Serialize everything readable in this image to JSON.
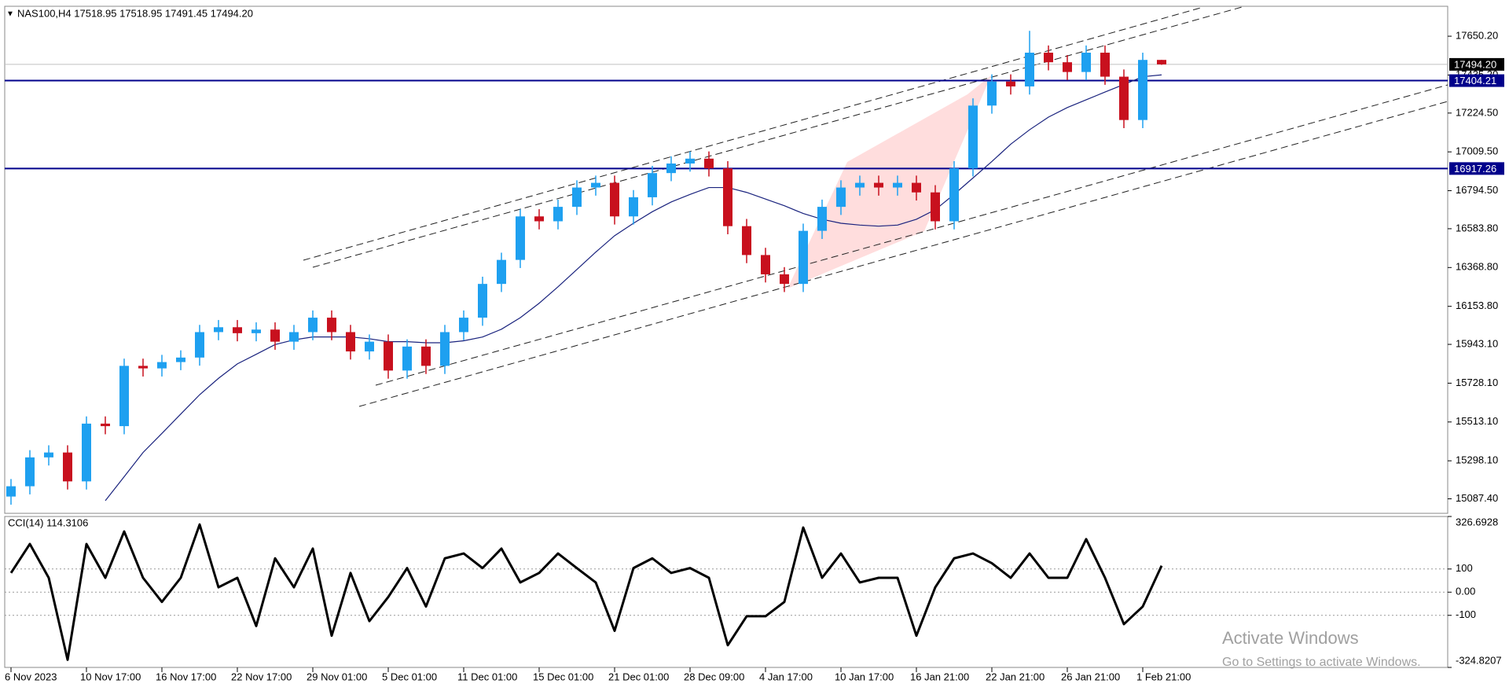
{
  "chart_data": [
    {
      "type": "candlestick",
      "title": "NAS100,H4 17518.95 17518.95 17491.45 17494.20",
      "categories": [
        "6 Nov 2023",
        null,
        null,
        null,
        "10 Nov 17:00",
        null,
        null,
        null,
        "16 Nov 17:00",
        null,
        null,
        null,
        "22 Nov 17:00",
        null,
        null,
        null,
        "29 Nov 01:00",
        null,
        null,
        null,
        "5 Dec 01:00",
        null,
        null,
        null,
        "11 Dec 01:00",
        null,
        null,
        null,
        "15 Dec 01:00",
        null,
        null,
        null,
        "21 Dec 01:00",
        null,
        null,
        null,
        "28 Dec 09:00",
        null,
        null,
        null,
        "4 Jan 17:00",
        null,
        null,
        null,
        "10 Jan 17:00",
        null,
        null,
        null,
        "16 Jan 21:00",
        null,
        null,
        null,
        "22 Jan 21:00",
        null,
        null,
        null,
        "26 Jan 21:00",
        null,
        null,
        null,
        "1 Feb 21:00",
        null
      ],
      "open": [
        15100,
        15157,
        15317,
        15344,
        15184,
        15504,
        15490,
        15824,
        15810,
        15845,
        15870,
        16011,
        16038,
        16005,
        16025,
        15958,
        16011,
        16091,
        16011,
        15904,
        15958,
        15798,
        15931,
        15824,
        16011,
        16091,
        16278,
        16411,
        16652,
        16625,
        16705,
        16812,
        16838,
        16652,
        16758,
        16892,
        16945,
        16972,
        16918,
        16598,
        16438,
        16331,
        16278,
        16572,
        16705,
        16812,
        16838,
        16812,
        16838,
        16785,
        16625,
        16918,
        17266,
        17399,
        17372,
        17559,
        17506,
        17452,
        17559,
        17426,
        17186,
        17518.95
      ],
      "high": [
        15197,
        15357,
        15384,
        15384,
        15544,
        15544,
        15864,
        15864,
        15885,
        15910,
        16051,
        16078,
        16078,
        16065,
        16065,
        16051,
        16131,
        16131,
        16051,
        15998,
        15998,
        15971,
        15971,
        16051,
        16131,
        16318,
        16451,
        16692,
        16692,
        16745,
        16852,
        16878,
        16878,
        16798,
        16932,
        16985,
        17012,
        17012,
        16958,
        16638,
        16478,
        16371,
        16612,
        16745,
        16852,
        16878,
        16878,
        16878,
        16878,
        16825,
        16958,
        17306,
        17439,
        17439,
        17680,
        17599,
        17546,
        17599,
        17599,
        17466,
        17558.95,
        17518.95
      ],
      "low": [
        15055,
        15112,
        15272,
        15139,
        15139,
        15445,
        15445,
        15765,
        15765,
        15800,
        15825,
        15966,
        15960,
        15960,
        15913,
        15913,
        15966,
        15966,
        15859,
        15859,
        15753,
        15753,
        15779,
        15779,
        15966,
        16046,
        16233,
        16366,
        16580,
        16580,
        16660,
        16767,
        16607,
        16607,
        16713,
        16847,
        16900,
        16873,
        16553,
        16393,
        16286,
        16233,
        16233,
        16527,
        16660,
        16767,
        16767,
        16767,
        16740,
        16580,
        16580,
        16873,
        17221,
        17327,
        17327,
        17461,
        17407,
        17407,
        17381,
        17141,
        17141,
        17491.45
      ],
      "close": [
        15157,
        15317,
        15344,
        15184,
        15504,
        15490,
        15824,
        15810,
        15845,
        15870,
        16011,
        16038,
        16005,
        16025,
        15958,
        16011,
        16091,
        16011,
        15904,
        15958,
        15798,
        15931,
        15824,
        16011,
        16091,
        16278,
        16411,
        16652,
        16625,
        16705,
        16812,
        16838,
        16652,
        16758,
        16892,
        16945,
        16972,
        16918,
        16598,
        16438,
        16331,
        16278,
        16572,
        16705,
        16812,
        16838,
        16812,
        16838,
        16785,
        16625,
        16918,
        17266,
        17399,
        17372,
        17559,
        17506,
        17452,
        17559,
        17426,
        17186,
        17518.95,
        17494.2
      ],
      "up_color": "#1ea0f0",
      "down_color": "#c8101e",
      "ma_color": "#1a237e",
      "ma_values": [
        null,
        null,
        null,
        null,
        null,
        15077,
        15210,
        15344,
        15450,
        15557,
        15664,
        15755,
        15835,
        15888,
        15942,
        15968,
        15984,
        15984,
        15984,
        15974,
        15958,
        15958,
        15952,
        15952,
        15963,
        15984,
        16027,
        16091,
        16171,
        16262,
        16358,
        16454,
        16545,
        16614,
        16678,
        16732,
        16774,
        16812,
        16812,
        16785,
        16748,
        16711,
        16668,
        16636,
        16614,
        16604,
        16598,
        16604,
        16636,
        16689,
        16774,
        16865,
        16956,
        17052,
        17132,
        17202,
        17255,
        17298,
        17341,
        17383,
        17426,
        17436
      ],
      "hlines": [
        17404.21,
        16917.26
      ],
      "hline_color": "#00008b",
      "last_price": {
        "value": 17494.2,
        "label": "17494.20"
      },
      "ylim": [
        15007,
        17816
      ],
      "yticks": [
        {
          "value": 15087.4,
          "label": "15087.40"
        },
        {
          "value": 15298.1,
          "label": "15298.10"
        },
        {
          "value": 15513.1,
          "label": "15513.10"
        },
        {
          "value": 15728.1,
          "label": "15728.10"
        },
        {
          "value": 15943.1,
          "label": "15943.10"
        },
        {
          "value": 16153.8,
          "label": "16153.80"
        },
        {
          "value": 16368.8,
          "label": "16368.80"
        },
        {
          "value": 16583.8,
          "label": "16583.80"
        },
        {
          "value": 16794.5,
          "label": "16794.50"
        },
        {
          "value": 17009.5,
          "label": "17009.50"
        },
        {
          "value": 17224.5,
          "label": "17224.50"
        },
        {
          "value": 17435.2,
          "label": "17435.20"
        },
        {
          "value": 17650.2,
          "label": "17650.20"
        }
      ]
    },
    {
      "type": "line",
      "title": "CCI(14) 114.3106",
      "color": "#000000",
      "values": [
        83,
        208,
        62,
        -292,
        208,
        62,
        262,
        62,
        -42,
        62,
        292,
        21,
        62,
        -146,
        146,
        21,
        188,
        -188,
        83,
        -125,
        -21,
        104,
        -62,
        146,
        167,
        104,
        188,
        42,
        83,
        167,
        104,
        42,
        -167,
        104,
        146,
        83,
        104,
        62,
        -229,
        -104,
        -104,
        -42,
        279,
        62,
        167,
        42,
        62,
        62,
        -188,
        21,
        146,
        167,
        125,
        62,
        167,
        62,
        62,
        229,
        62,
        -138,
        -62,
        114.3106
      ],
      "ylim": [
        -324.8207,
        326.6928
      ],
      "yticks": [
        326.6928,
        100,
        {
          "value": 0,
          "label": "0.00"
        },
        -100,
        -324.8207
      ]
    }
  ],
  "watermark": {
    "title": "Activate Windows",
    "subtitle": "Go to Settings to activate Windows."
  }
}
